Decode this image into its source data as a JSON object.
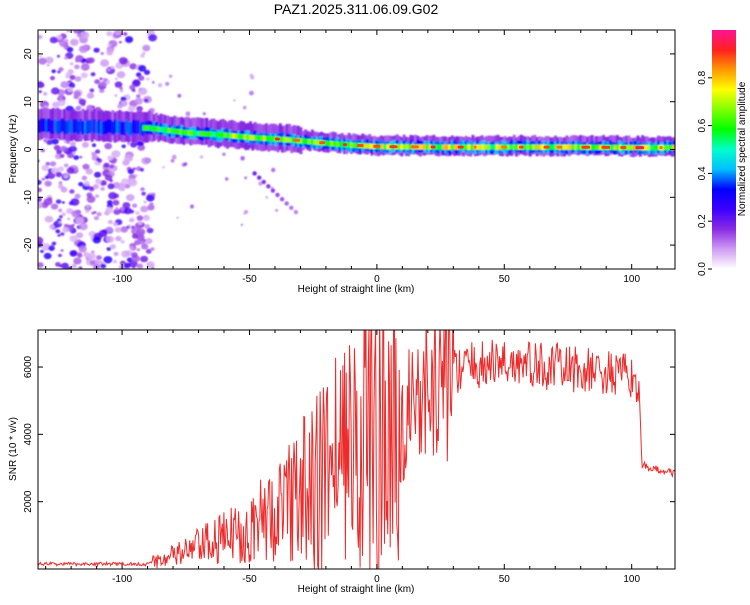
{
  "figure_title": "PAZ1.2025.311.06.09.G02",
  "chart_data": [
    {
      "type": "heatmap",
      "panel": "top",
      "title": "PAZ1.2025.311.06.09.G02",
      "xlabel": "Height of straight line (km)",
      "ylabel": "Frequency (Hz)",
      "xlim": [
        -133,
        117
      ],
      "ylim": [
        -25,
        25
      ],
      "xticks": [
        -100,
        -50,
        0,
        50,
        100
      ],
      "yticks": [
        -20,
        -10,
        0,
        10,
        20
      ],
      "xtick_labels": [
        "-100",
        "-50",
        "0",
        "50",
        "100"
      ],
      "ytick_labels": [
        "-20",
        "-10",
        "0",
        "10",
        "20"
      ],
      "ridge": {
        "description": "dominant spectral line frequency vs height",
        "x": [
          -133,
          -90,
          -75,
          -60,
          -50,
          -40,
          -30,
          -20,
          -10,
          0,
          25,
          50,
          75,
          100,
          117
        ],
        "y": [
          5,
          4.5,
          3.5,
          3,
          2.5,
          2.2,
          1.8,
          1.3,
          0.9,
          0.6,
          0.5,
          0.5,
          0.5,
          0.4,
          0.4
        ]
      },
      "noise_region": {
        "x_range": [
          -133,
          -88
        ],
        "y_range": [
          -25,
          25
        ]
      },
      "colorbar": {
        "label": "Normalized spectral amplitude",
        "range": [
          0,
          1
        ],
        "ticks": [
          0,
          0.2,
          0.4,
          0.6,
          0.8
        ],
        "tick_labels": [
          "0.0",
          "0.2",
          "0.4",
          "0.6",
          "0.8"
        ],
        "colormap": "rainbow",
        "colors": [
          "#ffffff",
          "#cf9cf4",
          "#8a2be2",
          "#3b00ff",
          "#0000ff",
          "#00bfff",
          "#00ffcc",
          "#00ff00",
          "#7fff00",
          "#ffff00",
          "#ff9900",
          "#ff2020",
          "#ff1493"
        ]
      }
    },
    {
      "type": "line",
      "panel": "bottom",
      "xlabel": "Height of straight line (km)",
      "ylabel": "SNR (10 * v/v)",
      "xlim": [
        -133,
        117
      ],
      "ylim": [
        0,
        7100
      ],
      "xticks": [
        -100,
        -50,
        0,
        50,
        100
      ],
      "yticks": [
        2000,
        4000,
        6000
      ],
      "xtick_labels": [
        "-100",
        "-50",
        "0",
        "50",
        "100"
      ],
      "ytick_labels": [
        "2000",
        "4000",
        "6000"
      ],
      "line_color": "#ee2a2a",
      "series": [
        {
          "name": "SNR",
          "x": [
            -133,
            -120,
            -100,
            -90,
            -85,
            -80,
            -70,
            -60,
            -50,
            -40,
            -30,
            -25,
            -20,
            -10,
            -5,
            0,
            5,
            10,
            15,
            20,
            25,
            30,
            35,
            40,
            45,
            50,
            55,
            60,
            70,
            80,
            90,
            100,
            102,
            103,
            104,
            105,
            110,
            117
          ],
          "y": [
            150,
            150,
            150,
            150,
            280,
            380,
            650,
            900,
            1250,
            1650,
            2200,
            2500,
            2800,
            3300,
            3800,
            4100,
            4500,
            4700,
            4950,
            5300,
            5650,
            5900,
            6000,
            6050,
            6100,
            6150,
            6100,
            6050,
            6000,
            5900,
            5800,
            5700,
            5600,
            5300,
            3050,
            3050,
            2950,
            2850
          ]
        }
      ]
    }
  ]
}
